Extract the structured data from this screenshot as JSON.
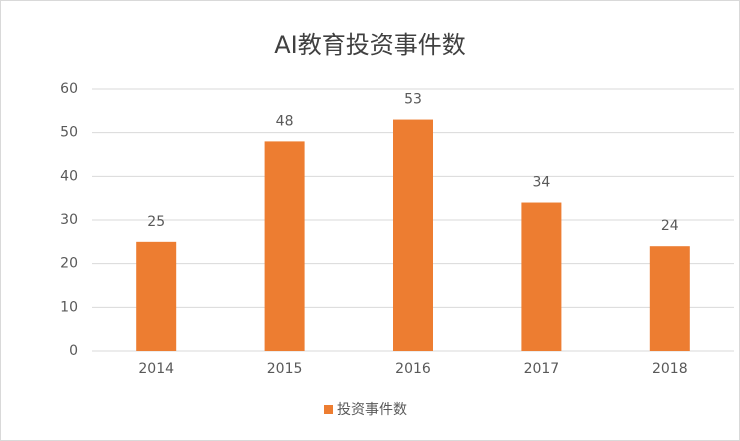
{
  "chart_data": {
    "type": "bar",
    "title": "AI教育投资事件数",
    "categories": [
      "2014",
      "2015",
      "2016",
      "2017",
      "2018"
    ],
    "series": [
      {
        "name": "投资事件数",
        "color": "#ed7d31",
        "values": [
          25,
          48,
          53,
          34,
          24
        ]
      }
    ],
    "ylim": [
      0,
      60
    ],
    "yticks": [
      0,
      10,
      20,
      30,
      40,
      50,
      60
    ],
    "grid": true,
    "legend": "bottom"
  }
}
